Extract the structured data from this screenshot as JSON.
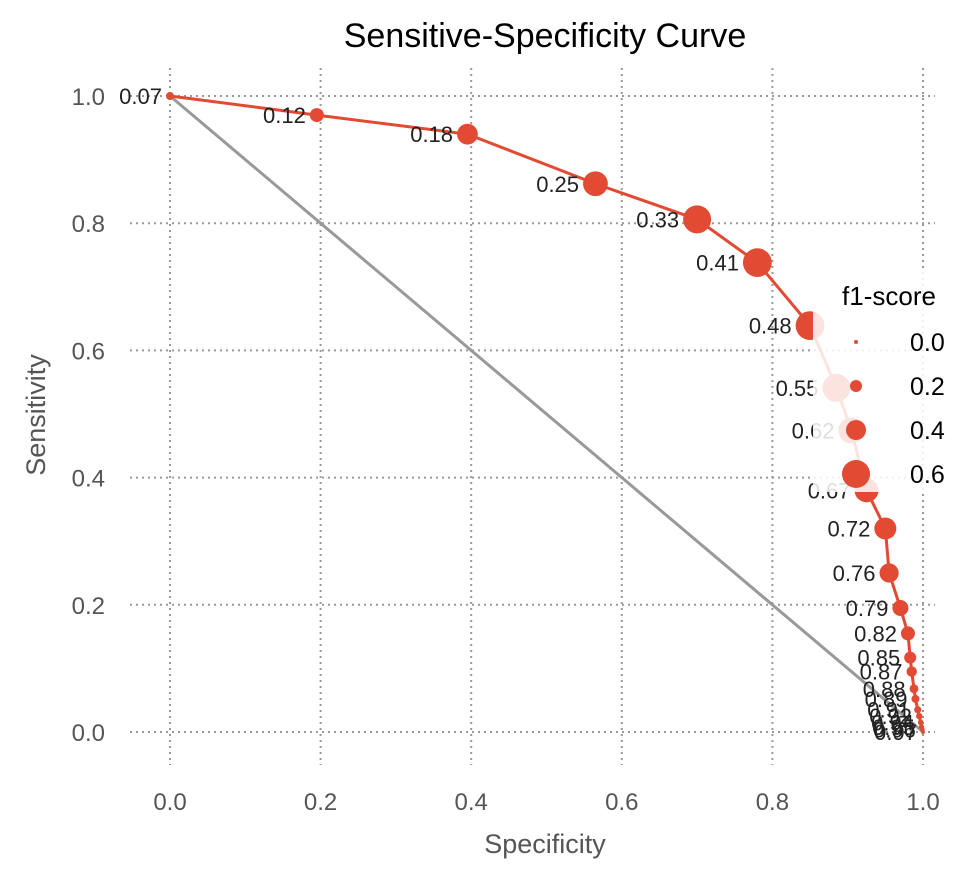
{
  "chart_data": {
    "type": "line",
    "title": "Sensitive-Specificity Curve",
    "xlabel": "Specificity",
    "ylabel": "Sensitivity",
    "xlim": [
      -0.05,
      1.0
    ],
    "ylim": [
      -0.05,
      1.05
    ],
    "xticks": [
      "0.0",
      "0.2",
      "0.4",
      "0.6",
      "0.8",
      "1.0"
    ],
    "yticks": [
      "0.0",
      "0.2",
      "0.4",
      "0.6",
      "0.8",
      "1.0"
    ],
    "grid": true,
    "colors": {
      "curve": "#e24a33",
      "diagonal": "#999999",
      "grid": "#999999"
    },
    "reference_line": {
      "x": [
        0.0,
        1.0
      ],
      "y": [
        1.0,
        0.0
      ]
    },
    "legend": {
      "title": "f1-score",
      "placement": "center-right",
      "entries": [
        {
          "label": "0.0",
          "size_value": 0.0
        },
        {
          "label": "0.2",
          "size_value": 0.2
        },
        {
          "label": "0.4",
          "size_value": 0.4
        },
        {
          "label": "0.6",
          "size_value": 0.6
        }
      ]
    },
    "series": [
      {
        "points": [
          {
            "x": 0.0,
            "y": 1.0,
            "f1": 0.1,
            "label": "0.07"
          },
          {
            "x": 0.195,
            "y": 0.97,
            "f1": 0.25,
            "label": "0.12"
          },
          {
            "x": 0.395,
            "y": 0.94,
            "f1": 0.42,
            "label": "0.18"
          },
          {
            "x": 0.565,
            "y": 0.862,
            "f1": 0.52,
            "label": "0.25"
          },
          {
            "x": 0.7,
            "y": 0.806,
            "f1": 0.6,
            "label": "0.33"
          },
          {
            "x": 0.78,
            "y": 0.738,
            "f1": 0.62,
            "label": "0.41"
          },
          {
            "x": 0.85,
            "y": 0.639,
            "f1": 0.62,
            "label": "0.48"
          },
          {
            "x": 0.885,
            "y": 0.541,
            "f1": 0.6,
            "label": "0.55"
          },
          {
            "x": 0.905,
            "y": 0.474,
            "f1": 0.55,
            "label": "0.62"
          },
          {
            "x": 0.925,
            "y": 0.38,
            "f1": 0.5,
            "label": "0.67"
          },
          {
            "x": 0.95,
            "y": 0.32,
            "f1": 0.45,
            "label": "0.72"
          },
          {
            "x": 0.955,
            "y": 0.25,
            "f1": 0.38,
            "label": "0.76"
          },
          {
            "x": 0.97,
            "y": 0.195,
            "f1": 0.3,
            "label": "0.79"
          },
          {
            "x": 0.98,
            "y": 0.155,
            "f1": 0.25,
            "label": "0.82"
          },
          {
            "x": 0.983,
            "y": 0.117,
            "f1": 0.2,
            "label": "0.85"
          },
          {
            "x": 0.985,
            "y": 0.095,
            "f1": 0.16,
            "label": "0.87"
          },
          {
            "x": 0.988,
            "y": 0.068,
            "f1": 0.12,
            "label": "0.88"
          },
          {
            "x": 0.99,
            "y": 0.052,
            "f1": 0.1,
            "label": "0.89"
          },
          {
            "x": 0.993,
            "y": 0.035,
            "f1": 0.08,
            "label": "0.91"
          },
          {
            "x": 0.995,
            "y": 0.025,
            "f1": 0.06,
            "label": "0.92"
          },
          {
            "x": 0.997,
            "y": 0.015,
            "f1": 0.04,
            "label": "0.94"
          },
          {
            "x": 0.998,
            "y": 0.008,
            "f1": 0.03,
            "label": "0.95"
          },
          {
            "x": 0.999,
            "y": 0.004,
            "f1": 0.02,
            "label": "0.96"
          },
          {
            "x": 1.0,
            "y": 0.0,
            "f1": 0.0,
            "label": "0.97"
          }
        ]
      }
    ]
  }
}
